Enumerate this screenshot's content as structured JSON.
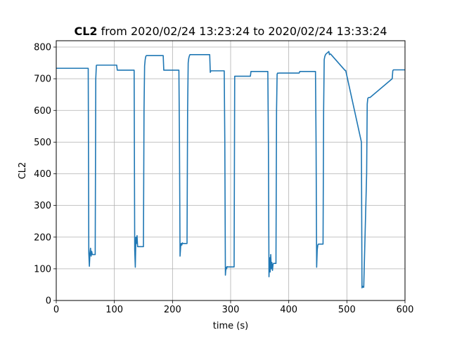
{
  "chart_data": {
    "type": "line",
    "title_bold": "CL2",
    "title_rest": " from 2020/02/24 13:23:24 to 2020/02/24 13:33:24",
    "xlabel": "time (s)",
    "ylabel": "CL2",
    "xlim": [
      0,
      600
    ],
    "ylim": [
      0,
      820
    ],
    "xticks": [
      0,
      100,
      200,
      300,
      400,
      500,
      600
    ],
    "yticks": [
      0,
      100,
      200,
      300,
      400,
      500,
      600,
      700,
      800
    ],
    "grid": true,
    "line_color": "#1f77b4",
    "series": [
      {
        "x": [
          0,
          55,
          56,
          57,
          58,
          59,
          60,
          61,
          62,
          67,
          68,
          69,
          70,
          104,
          105,
          134,
          135,
          136,
          137,
          138,
          139,
          140,
          150,
          151,
          152,
          153,
          154,
          155,
          184,
          185,
          211,
          212,
          213,
          214,
          215,
          216,
          217,
          218,
          225,
          226,
          227,
          228,
          229,
          230,
          264,
          265,
          266,
          289,
          290,
          291,
          292,
          293,
          294,
          295,
          306,
          307,
          334,
          335,
          364,
          365,
          366,
          367,
          368,
          369,
          370,
          371,
          372,
          373,
          374,
          378,
          379,
          380,
          381,
          382,
          383,
          418,
          419,
          446,
          447,
          448,
          449,
          450,
          451,
          452,
          459,
          460,
          461,
          462,
          463,
          464,
          469,
          470,
          471,
          472,
          497,
          498,
          525,
          526,
          527,
          528,
          529,
          534,
          535,
          536,
          537,
          538,
          539,
          540,
          578,
          579,
          580,
          581,
          600
        ],
        "values": [
          733,
          733,
          150,
          108,
          150,
          165,
          140,
          155,
          145,
          145,
          700,
          742,
          743,
          743,
          727,
          727,
          160,
          105,
          200,
          180,
          205,
          170,
          170,
          600,
          740,
          760,
          770,
          773,
          773,
          727,
          727,
          500,
          140,
          170,
          180,
          175,
          182,
          180,
          180,
          600,
          750,
          765,
          772,
          776,
          776,
          720,
          725,
          725,
          500,
          80,
          105,
          100,
          107,
          106,
          106,
          708,
          708,
          723,
          723,
          500,
          75,
          135,
          90,
          145,
          100,
          120,
          95,
          115,
          117,
          117,
          600,
          715,
          718,
          717,
          718,
          718,
          723,
          723,
          500,
          105,
          160,
          175,
          178,
          178,
          178,
          600,
          760,
          770,
          775,
          778,
          786,
          776,
          778,
          778,
          726,
          726,
          500,
          40,
          45,
          42,
          42,
          400,
          620,
          638,
          640,
          641,
          641,
          641,
          700,
          725,
          728,
          728,
          728
        ]
      }
    ]
  }
}
